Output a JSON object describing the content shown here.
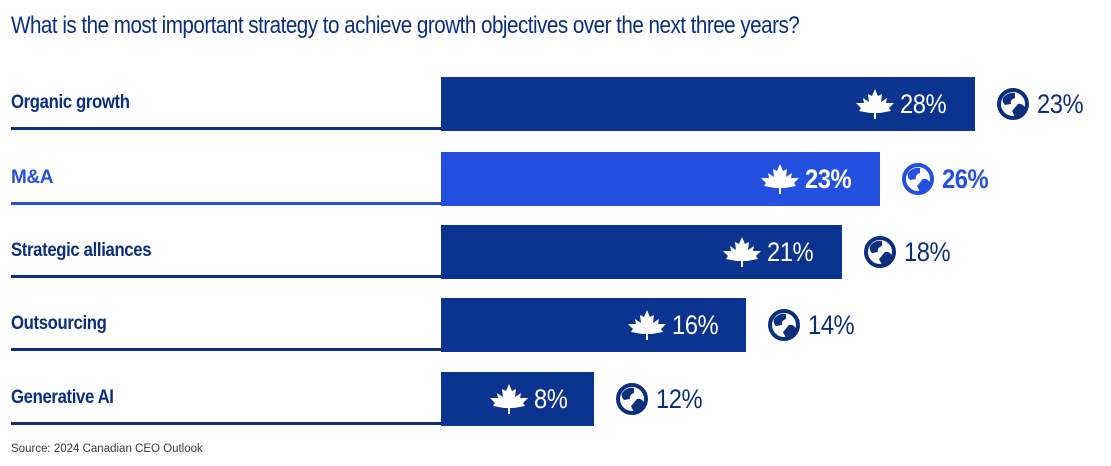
{
  "title": "What is the most important strategy to achieve growth objectives over the next three years?",
  "source": "Source: 2024 Canadian CEO Outlook",
  "colors": {
    "primary": "#0a3490",
    "highlight": "#2450e0",
    "text": "#0b2f7d"
  },
  "icons": {
    "canada": "maple-leaf-icon",
    "global": "globe-icon"
  },
  "chart_data": {
    "type": "bar",
    "orientation": "horizontal",
    "title": "What is the most important strategy to achieve growth objectives over the next three years?",
    "categories": [
      "Organic growth",
      "M&A",
      "Strategic alliances",
      "Outsourcing",
      "Generative AI"
    ],
    "series": [
      {
        "name": "Canada",
        "icon": "maple-leaf-icon",
        "values": [
          28,
          23,
          21,
          16,
          8
        ],
        "labels": [
          "28%",
          "23%",
          "21%",
          "16%",
          "8%"
        ]
      },
      {
        "name": "Global",
        "icon": "globe-icon",
        "values": [
          23,
          26,
          18,
          14,
          12
        ],
        "labels": [
          "23%",
          "26%",
          "18%",
          "14%",
          "12%"
        ]
      }
    ],
    "highlighted_category": "M&A",
    "unit": "%",
    "xlim": [
      0,
      28
    ],
    "grid": false,
    "legend": "none"
  }
}
